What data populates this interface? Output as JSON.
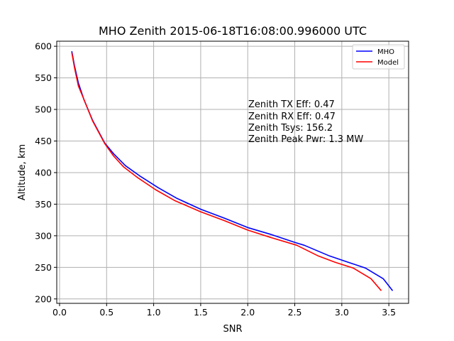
{
  "chart_data": {
    "type": "line",
    "title": "MHO Zenith 2015-06-18T16:08:00.996000 UTC",
    "xlabel": "SNR",
    "ylabel": "Altitude, km",
    "xlim": [
      -0.03,
      3.71
    ],
    "ylim": [
      193,
      608
    ],
    "xticks": [
      0.0,
      0.5,
      1.0,
      1.5,
      2.0,
      2.5,
      3.0,
      3.5
    ],
    "xtick_labels": [
      "0.0",
      "0.5",
      "1.0",
      "1.5",
      "2.0",
      "2.5",
      "3.0",
      "3.5"
    ],
    "yticks": [
      200,
      250,
      300,
      350,
      400,
      450,
      500,
      550,
      600
    ],
    "ytick_labels": [
      "200",
      "250",
      "300",
      "350",
      "400",
      "450",
      "500",
      "550",
      "600"
    ],
    "grid": true,
    "legend_position": "top-right",
    "series": [
      {
        "name": "MHO",
        "color": "#0000ff",
        "x": [
          3.54,
          3.44,
          3.25,
          3.07,
          2.87,
          2.6,
          2.51,
          2.25,
          2.0,
          1.75,
          1.5,
          1.25,
          1.05,
          0.85,
          0.7,
          0.58,
          0.48,
          0.35,
          0.26,
          0.2,
          0.16,
          0.13
        ],
        "y": [
          213,
          232,
          249,
          258,
          268,
          285,
          289,
          302,
          313,
          328,
          342,
          359,
          376,
          395,
          411,
          429,
          447,
          483,
          515,
          542,
          568,
          592
        ]
      },
      {
        "name": "Model",
        "color": "#ff0000",
        "x": [
          3.42,
          3.31,
          3.12,
          2.93,
          2.75,
          2.52,
          2.25,
          2.0,
          1.75,
          1.5,
          1.22,
          1.02,
          0.83,
          0.68,
          0.57,
          0.48,
          0.35,
          0.27,
          0.2,
          0.16,
          0.13
        ],
        "y": [
          213,
          232,
          249,
          258,
          268,
          285,
          297,
          309,
          324,
          338,
          356,
          373,
          392,
          409,
          427,
          446,
          482,
          512,
          537,
          565,
          590
        ]
      }
    ],
    "annotations": [
      "Zenith TX Eff: 0.47",
      "Zenith RX Eff: 0.47",
      "Zenith Tsys: 156.2",
      "Zenith Peak Pwr: 1.3 MW"
    ]
  }
}
